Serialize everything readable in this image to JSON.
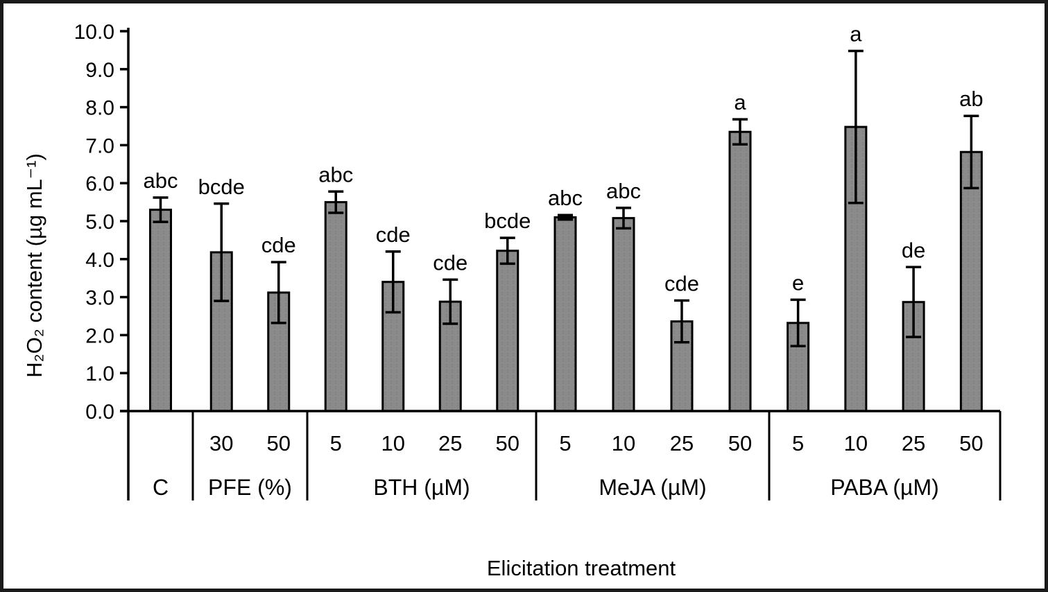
{
  "figure_title": "",
  "chart_data": {
    "type": "bar",
    "title": "",
    "ylabel": "H₂O₂ content (µg mL⁻¹)",
    "xlabel": "Elicitation treatment",
    "ylim": [
      0,
      10
    ],
    "ytick_step": 1.0,
    "ytick_labels": [
      "0.0",
      "1.0",
      "2.0",
      "3.0",
      "4.0",
      "5.0",
      "6.0",
      "7.0",
      "8.0",
      "9.0",
      "10.0"
    ],
    "grid": false,
    "legend": "none",
    "bar_color": "#8b8b8b",
    "bar_edge_color": "#000000",
    "error_bar_color": "#000000",
    "groups": [
      {
        "label": "C",
        "bars": [
          {
            "dose": "",
            "value": 5.3,
            "error": 0.32,
            "sig": "abc"
          }
        ]
      },
      {
        "label": "PFE (%)",
        "bars": [
          {
            "dose": "30",
            "value": 4.18,
            "error": 1.28,
            "sig": "bcde"
          },
          {
            "dose": "50",
            "value": 3.12,
            "error": 0.8,
            "sig": "cde"
          }
        ]
      },
      {
        "label": "BTH (µM)",
        "bars": [
          {
            "dose": "5",
            "value": 5.5,
            "error": 0.28,
            "sig": "abc"
          },
          {
            "dose": "10",
            "value": 3.4,
            "error": 0.8,
            "sig": "cde"
          },
          {
            "dose": "25",
            "value": 2.88,
            "error": 0.58,
            "sig": "cde"
          },
          {
            "dose": "50",
            "value": 4.22,
            "error": 0.34,
            "sig": "bcde"
          }
        ]
      },
      {
        "label": "MeJA (µM)",
        "bars": [
          {
            "dose": "5",
            "value": 5.1,
            "error": 0.06,
            "sig": "abc"
          },
          {
            "dose": "10",
            "value": 5.08,
            "error": 0.27,
            "sig": "abc"
          },
          {
            "dose": "25",
            "value": 2.36,
            "error": 0.55,
            "sig": "cde"
          },
          {
            "dose": "50",
            "value": 7.35,
            "error": 0.33,
            "sig": "a"
          }
        ]
      },
      {
        "label": "PABA (µM)",
        "bars": [
          {
            "dose": "5",
            "value": 2.32,
            "error": 0.61,
            "sig": "e"
          },
          {
            "dose": "10",
            "value": 7.48,
            "error": 2.0,
            "sig": "a"
          },
          {
            "dose": "25",
            "value": 2.87,
            "error": 0.92,
            "sig": "de"
          },
          {
            "dose": "50",
            "value": 6.82,
            "error": 0.95,
            "sig": "ab"
          }
        ]
      }
    ]
  }
}
